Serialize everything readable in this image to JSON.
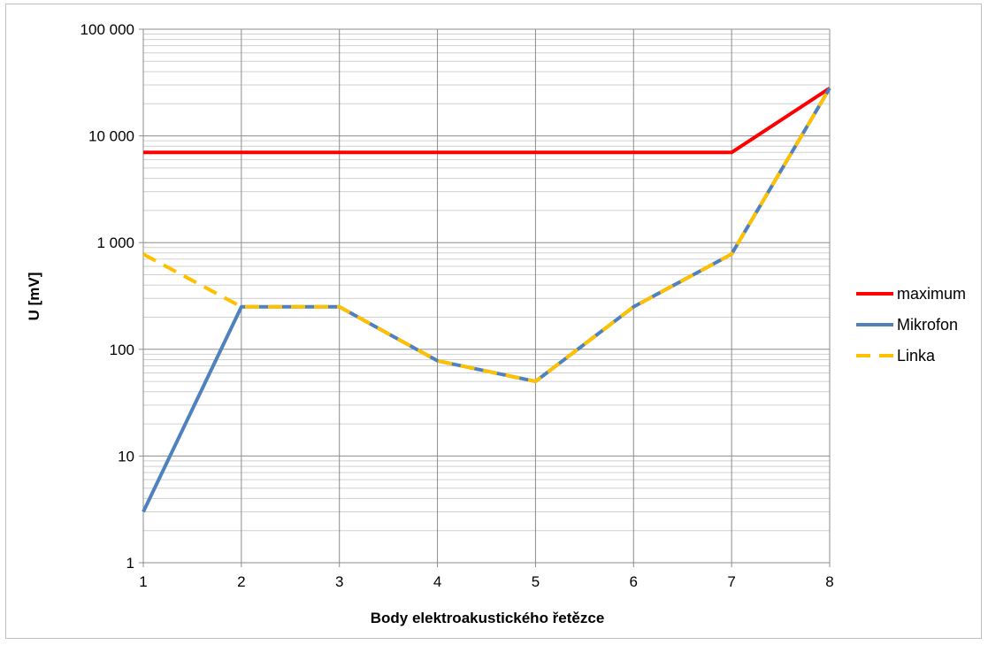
{
  "chart_data": {
    "type": "line",
    "title": "",
    "xlabel": "Body elektroakustického řetězce",
    "ylabel": "U [mV]",
    "x": [
      1,
      2,
      3,
      4,
      5,
      6,
      7,
      8
    ],
    "x_tick_labels": [
      "1",
      "2",
      "3",
      "4",
      "5",
      "6",
      "7",
      "8"
    ],
    "y_scale": "log",
    "ylim": [
      1,
      100000
    ],
    "y_tick_values": [
      1,
      10,
      100,
      1000,
      10000,
      100000
    ],
    "y_tick_labels": [
      "1",
      "10",
      "100",
      "1 000",
      "10 000",
      "100 000"
    ],
    "grid": true,
    "legend_position": "right",
    "series": [
      {
        "name": "maximum",
        "color": "#ff0000",
        "dash": "solid",
        "values": [
          7000,
          7000,
          7000,
          7000,
          7000,
          7000,
          7000,
          28000
        ]
      },
      {
        "name": "Mikrofon",
        "color": "#4f81bd",
        "dash": "solid",
        "values": [
          3,
          250,
          250,
          78,
          50,
          250,
          780,
          28000
        ]
      },
      {
        "name": "Linka",
        "color": "#ffc000",
        "dash": "dashed",
        "values": [
          780,
          250,
          250,
          78,
          50,
          250,
          780,
          28000
        ]
      }
    ]
  }
}
